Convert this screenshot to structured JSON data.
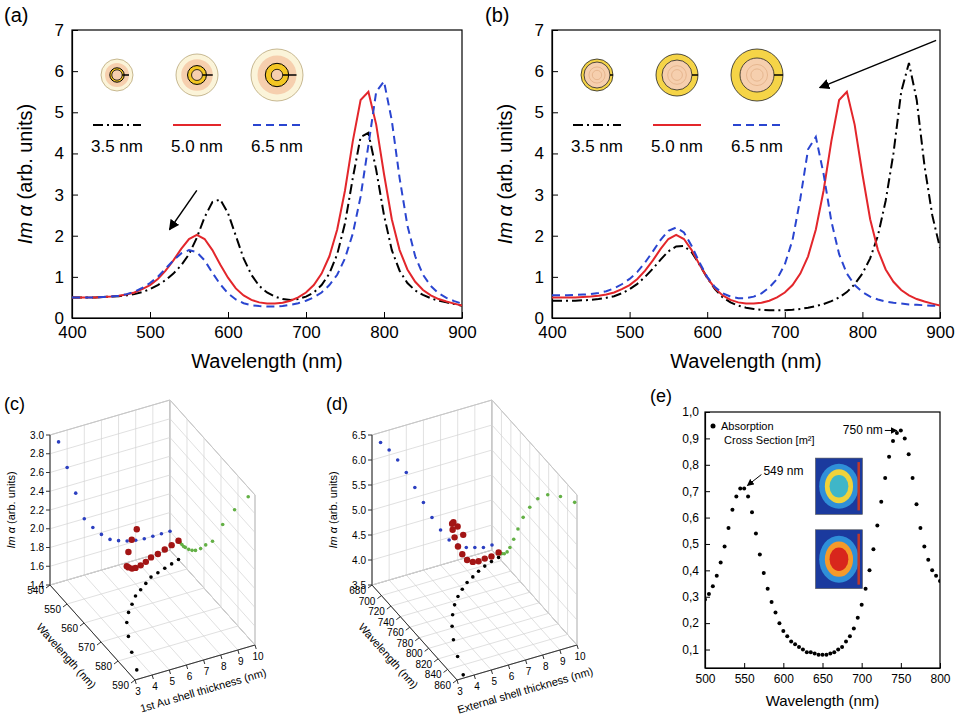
{
  "chart_data": [
    {
      "type": "line",
      "title": "(a)",
      "xlabel": "Wavelength (nm)",
      "ylabel": "Im α (arb. units)",
      "legend": "upper left",
      "xlim": [
        400,
        900
      ],
      "xticks": [
        400,
        500,
        600,
        700,
        800,
        900
      ],
      "ylim": [
        0,
        7
      ],
      "yticks": [
        0,
        1,
        2,
        3,
        4,
        5,
        6,
        7
      ],
      "x": [
        400,
        410,
        420,
        430,
        440,
        450,
        460,
        470,
        480,
        490,
        500,
        510,
        520,
        530,
        540,
        550,
        560,
        570,
        580,
        590,
        600,
        610,
        620,
        630,
        640,
        650,
        660,
        670,
        680,
        690,
        700,
        710,
        720,
        730,
        740,
        750,
        760,
        770,
        780,
        790,
        800,
        810,
        820,
        830,
        840,
        850,
        860,
        870,
        880,
        890,
        900
      ],
      "series": [
        {
          "name": "3.5 nm",
          "color": "#000000",
          "line_style": "dashdot",
          "values": [
            0.5,
            0.5,
            0.5,
            0.5,
            0.51,
            0.52,
            0.53,
            0.55,
            0.58,
            0.63,
            0.7,
            0.8,
            0.92,
            1.08,
            1.28,
            1.55,
            1.95,
            2.45,
            2.82,
            2.88,
            2.55,
            2.0,
            1.45,
            1.05,
            0.78,
            0.62,
            0.52,
            0.46,
            0.44,
            0.46,
            0.52,
            0.62,
            0.8,
            1.08,
            1.55,
            2.3,
            3.4,
            4.4,
            4.5,
            3.6,
            2.5,
            1.65,
            1.15,
            0.85,
            0.67,
            0.56,
            0.48,
            0.42,
            0.38,
            0.34,
            0.3
          ]
        },
        {
          "name": "5.0 nm",
          "color": "#e3262b",
          "line_style": "solid",
          "values": [
            0.5,
            0.5,
            0.5,
            0.5,
            0.51,
            0.52,
            0.54,
            0.57,
            0.62,
            0.7,
            0.8,
            0.95,
            1.15,
            1.4,
            1.68,
            1.92,
            2.02,
            1.92,
            1.65,
            1.3,
            0.98,
            0.72,
            0.55,
            0.44,
            0.38,
            0.35,
            0.35,
            0.37,
            0.42,
            0.5,
            0.62,
            0.8,
            1.08,
            1.5,
            2.15,
            3.1,
            4.3,
            5.3,
            5.5,
            4.7,
            3.5,
            2.4,
            1.65,
            1.18,
            0.88,
            0.68,
            0.55,
            0.46,
            0.4,
            0.35,
            0.3
          ]
        },
        {
          "name": "6.5 nm",
          "color": "#2a45d0",
          "line_style": "dashed",
          "values": [
            0.5,
            0.5,
            0.5,
            0.5,
            0.51,
            0.52,
            0.54,
            0.58,
            0.64,
            0.73,
            0.85,
            1.0,
            1.2,
            1.4,
            1.57,
            1.65,
            1.6,
            1.4,
            1.1,
            0.82,
            0.6,
            0.45,
            0.36,
            0.31,
            0.29,
            0.28,
            0.28,
            0.29,
            0.32,
            0.36,
            0.42,
            0.5,
            0.62,
            0.8,
            1.05,
            1.45,
            2.05,
            2.95,
            4.2,
            5.5,
            5.75,
            4.8,
            3.4,
            2.25,
            1.5,
            1.05,
            0.78,
            0.6,
            0.49,
            0.41,
            0.35
          ]
        }
      ]
    },
    {
      "type": "line",
      "title": "(b)",
      "xlabel": "Wavelength (nm)",
      "ylabel": "Im α (arb. units)",
      "legend": "upper left",
      "xlim": [
        400,
        900
      ],
      "xticks": [
        400,
        500,
        600,
        700,
        800,
        900
      ],
      "ylim": [
        0,
        7
      ],
      "yticks": [
        0,
        1,
        2,
        3,
        4,
        5,
        6,
        7
      ],
      "x": [
        400,
        410,
        420,
        430,
        440,
        450,
        460,
        470,
        480,
        490,
        500,
        510,
        520,
        530,
        540,
        550,
        560,
        570,
        580,
        590,
        600,
        610,
        620,
        630,
        640,
        650,
        660,
        670,
        680,
        690,
        700,
        710,
        720,
        730,
        740,
        750,
        760,
        770,
        780,
        790,
        800,
        810,
        820,
        830,
        840,
        850,
        860,
        870,
        880,
        890,
        900
      ],
      "series": [
        {
          "name": "3.5 nm",
          "color": "#000000",
          "line_style": "dashdot",
          "values": [
            0.42,
            0.42,
            0.42,
            0.42,
            0.43,
            0.44,
            0.46,
            0.49,
            0.53,
            0.6,
            0.7,
            0.83,
            1.0,
            1.2,
            1.42,
            1.62,
            1.74,
            1.75,
            1.6,
            1.3,
            0.98,
            0.7,
            0.5,
            0.38,
            0.3,
            0.25,
            0.22,
            0.2,
            0.19,
            0.19,
            0.19,
            0.2,
            0.22,
            0.25,
            0.29,
            0.34,
            0.41,
            0.5,
            0.63,
            0.82,
            1.08,
            1.45,
            2.0,
            2.85,
            4.0,
            5.5,
            6.2,
            5.3,
            3.7,
            2.5,
            1.7
          ]
        },
        {
          "name": "5.0 nm",
          "color": "#e3262b",
          "line_style": "solid",
          "values": [
            0.5,
            0.5,
            0.5,
            0.5,
            0.51,
            0.52,
            0.54,
            0.57,
            0.62,
            0.7,
            0.8,
            0.95,
            1.15,
            1.4,
            1.68,
            1.92,
            2.02,
            1.92,
            1.65,
            1.3,
            0.98,
            0.72,
            0.55,
            0.44,
            0.38,
            0.35,
            0.35,
            0.37,
            0.42,
            0.5,
            0.62,
            0.8,
            1.08,
            1.5,
            2.15,
            3.1,
            4.3,
            5.3,
            5.5,
            4.7,
            3.5,
            2.4,
            1.65,
            1.18,
            0.88,
            0.68,
            0.55,
            0.46,
            0.4,
            0.35,
            0.3
          ]
        },
        {
          "name": "6.5 nm",
          "color": "#2a45d0",
          "line_style": "dashed",
          "values": [
            0.55,
            0.55,
            0.55,
            0.56,
            0.57,
            0.58,
            0.61,
            0.65,
            0.72,
            0.82,
            0.95,
            1.12,
            1.35,
            1.62,
            1.9,
            2.12,
            2.2,
            2.08,
            1.75,
            1.35,
            1.0,
            0.75,
            0.6,
            0.52,
            0.48,
            0.48,
            0.52,
            0.6,
            0.74,
            0.95,
            1.3,
            1.9,
            2.9,
            4.1,
            4.4,
            3.5,
            2.35,
            1.55,
            1.08,
            0.8,
            0.63,
            0.52,
            0.45,
            0.4,
            0.37,
            0.35,
            0.33,
            0.32,
            0.31,
            0.3,
            0.29
          ]
        }
      ]
    },
    {
      "type": "scatter3d",
      "title": "(c)",
      "color": "#a31515",
      "marker": "circle",
      "xlabel": "1st Au shell thickness (nm)",
      "ylabel": "Wavelength (nm)",
      "zlabel": "Im α (arb. units)",
      "xlim": [
        3,
        10
      ],
      "xticks": [
        3,
        4,
        5,
        6,
        7,
        8,
        9,
        10
      ],
      "ylim": [
        540,
        590
      ],
      "yticks": [
        540,
        550,
        560,
        570,
        580,
        590
      ],
      "zlim": [
        1.4,
        3.0
      ],
      "zticks": [
        1.4,
        1.6,
        1.8,
        {
          "value": 2.0,
          "label": "2.0"
        },
        2.2,
        2.4,
        2.6,
        2.8,
        {
          "value": 3.0,
          "label": "3.0"
        }
      ],
      "x": [
        3.5,
        4,
        4.5,
        5,
        5.5,
        6,
        6.5,
        7,
        7.5,
        8,
        8.5,
        9,
        9.5,
        10
      ],
      "y": [
        586,
        578,
        571,
        565,
        561,
        558,
        555,
        553,
        551,
        549,
        548,
        547,
        546,
        545
      ],
      "z": [
        2.9,
        2.6,
        2.3,
        2.0,
        1.88,
        1.78,
        1.7,
        1.66,
        1.63,
        1.61,
        1.6,
        1.6,
        1.6,
        1.6
      ]
    },
    {
      "type": "scatter3d",
      "title": "(d)",
      "color": "#a31515",
      "marker": "circle",
      "xlabel": "External shell thickness (nm)",
      "ylabel": "Wavelength (nm)",
      "zlabel": "Im α (arb. units)",
      "xlim": [
        3,
        10
      ],
      "xticks": [
        3,
        4,
        5,
        6,
        7,
        8,
        9,
        10
      ],
      "ylim": [
        680,
        860
      ],
      "yticks": [
        680,
        700,
        720,
        740,
        760,
        780,
        800,
        820,
        840,
        860
      ],
      "zlim": [
        3.5,
        6.5
      ],
      "zticks": [
        3.5,
        {
          "value": 4.0,
          "label": "4.0"
        },
        4.5,
        {
          "value": 5.0,
          "label": "5.0"
        },
        5.5,
        {
          "value": 6.0,
          "label": "6.0"
        },
        6.5
      ],
      "x": [
        3.5,
        4,
        4.5,
        5,
        5.5,
        6,
        6.5,
        7,
        7.5,
        8,
        8.5,
        9,
        9.5,
        10
      ],
      "y": [
        855,
        825,
        798,
        777,
        760,
        746,
        735,
        726,
        718,
        712,
        706,
        701,
        697,
        694
      ],
      "z": [
        6.3,
        6.1,
        5.85,
        5.55,
        5.2,
        4.85,
        4.5,
        4.2,
        3.95,
        3.8,
        3.7,
        3.65,
        3.6,
        3.6
      ]
    },
    {
      "type": "scatter",
      "title": "(e)",
      "xlabel": "Wavelength (nm)",
      "legend": "upper left",
      "xlim": [
        500,
        800
      ],
      "xticks": [
        500,
        550,
        600,
        650,
        700,
        750,
        800
      ],
      "ylim": [
        0.03,
        1.0
      ],
      "yticks": [
        {
          "value": 0.1,
          "label": "0,1"
        },
        {
          "value": 0.2,
          "label": "0,2"
        },
        {
          "value": 0.3,
          "label": "0,3"
        },
        {
          "value": 0.4,
          "label": "0,4"
        },
        {
          "value": 0.5,
          "label": "0,5"
        },
        {
          "value": 0.6,
          "label": "0,6"
        },
        {
          "value": 0.7,
          "label": "0,7"
        },
        {
          "value": 0.8,
          "label": "0,8"
        },
        {
          "value": 0.9,
          "label": "0,9"
        },
        {
          "value": 1.0,
          "label": "1,0"
        }
      ],
      "x": [
        500,
        505,
        510,
        515,
        520,
        525,
        530,
        535,
        540,
        545,
        550,
        555,
        560,
        565,
        570,
        575,
        580,
        585,
        590,
        595,
        600,
        605,
        610,
        615,
        620,
        625,
        630,
        635,
        640,
        645,
        650,
        655,
        660,
        665,
        670,
        675,
        680,
        685,
        690,
        695,
        700,
        705,
        710,
        715,
        720,
        725,
        730,
        735,
        740,
        745,
        750,
        755,
        760,
        765,
        770,
        775,
        780,
        785,
        790,
        795,
        800
      ],
      "series": [
        {
          "name": "Absorption Cross Section [m²]",
          "color": "#000000",
          "marker": "circle",
          "values": [
            0.29,
            0.31,
            0.34,
            0.38,
            0.43,
            0.49,
            0.56,
            0.63,
            0.68,
            0.71,
            0.71,
            0.68,
            0.62,
            0.54,
            0.46,
            0.39,
            0.33,
            0.28,
            0.24,
            0.2,
            0.17,
            0.15,
            0.13,
            0.12,
            0.11,
            0.1,
            0.09,
            0.09,
            0.085,
            0.08,
            0.08,
            0.08,
            0.085,
            0.09,
            0.1,
            0.11,
            0.13,
            0.15,
            0.18,
            0.22,
            0.27,
            0.33,
            0.4,
            0.48,
            0.57,
            0.66,
            0.75,
            0.83,
            0.89,
            0.92,
            0.93,
            0.9,
            0.84,
            0.75,
            0.65,
            0.56,
            0.49,
            0.44,
            0.4,
            0.38,
            0.36
          ]
        }
      ],
      "annotations": [
        {
          "text": "750 nm",
          "x": 750,
          "y": 0.93
        },
        {
          "text": "549 nm",
          "x": 549,
          "y": 0.71
        }
      ]
    }
  ]
}
